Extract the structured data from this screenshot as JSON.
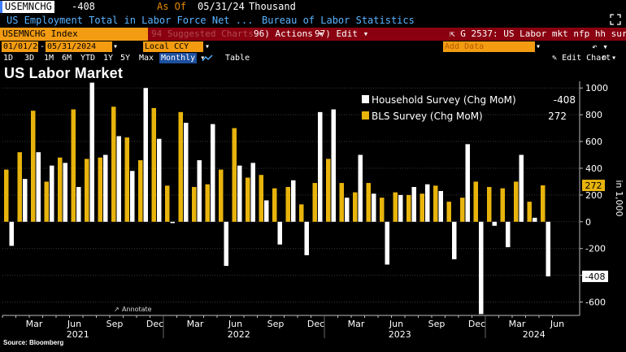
{
  "header": {
    "ticker": "USEMNCHG",
    "last_value": "-408",
    "as_of_label": "As Of",
    "as_of_date": "05/31/24",
    "unit": "Thousand",
    "description": "US Employment Total in Labor Force Net ...",
    "source": "Bureau of Labor Statistics"
  },
  "toolbar": {
    "index_label": "USEMNCHG Index",
    "suggested_label": "94 Suggested Charts",
    "actions_label": "96) Actions",
    "edit_label": "97) Edit",
    "chart_title_code": "G 2537: US Labor mkt nfp hh surv",
    "start_date": "01/01/2021",
    "date_sep": "-",
    "end_date": "05/31/2024",
    "currency": "Local CCY",
    "add_data_label": "Add Data",
    "edit_chart_label": "Edit Chart",
    "periods": [
      "1D",
      "3D",
      "1M",
      "6M",
      "YTD",
      "1Y",
      "5Y",
      "Max"
    ],
    "frequency": "Monthly",
    "table_label": "Table"
  },
  "page_title": "US Labor Market",
  "annotate_label": "Annotate",
  "footer": "Source: Bloomberg",
  "colors": {
    "household": "#ffffff",
    "bls": "#e8b40c",
    "background": "#000000",
    "accent_orange": "#f39c12",
    "link_blue": "#5ab4ff",
    "bar_red": "#8a0010"
  },
  "chart_data": {
    "type": "bar",
    "title": "US Labor Market",
    "ylabel": "in 1,000",
    "ylim": [
      -700,
      1050
    ],
    "yticks": [
      -600,
      -400,
      -200,
      0,
      200,
      400,
      600,
      800,
      1000
    ],
    "months": [
      "Jan 2021",
      "Feb 2021",
      "Mar 2021",
      "Apr 2021",
      "May 2021",
      "Jun 2021",
      "Jul 2021",
      "Aug 2021",
      "Sep 2021",
      "Oct 2021",
      "Nov 2021",
      "Dec 2021",
      "Jan 2022",
      "Feb 2022",
      "Mar 2022",
      "Apr 2022",
      "May 2022",
      "Jun 2022",
      "Jul 2022",
      "Aug 2022",
      "Sep 2022",
      "Oct 2022",
      "Nov 2022",
      "Dec 2022",
      "Jan 2023",
      "Feb 2023",
      "Mar 2023",
      "Apr 2023",
      "May 2023",
      "Jun 2023",
      "Jul 2023",
      "Aug 2023",
      "Sep 2023",
      "Oct 2023",
      "Nov 2023",
      "Dec 2023",
      "Jan 2024",
      "Feb 2024",
      "Mar 2024",
      "Apr 2024",
      "May 2024"
    ],
    "x_month_labels": [
      "Mar",
      "Jun",
      "Sep",
      "Dec",
      "Mar",
      "Jun",
      "Sep",
      "Dec",
      "Mar",
      "Jun",
      "Sep",
      "Dec",
      "Mar",
      "Jun"
    ],
    "x_month_label_indices": [
      2,
      5,
      8,
      11,
      14,
      17,
      20,
      23,
      26,
      29,
      32,
      35,
      38,
      41
    ],
    "x_year_labels": [
      "2021",
      "2022",
      "2023",
      "2024"
    ],
    "x_year_label_positions": [
      5.5,
      17.5,
      29.5,
      39.5
    ],
    "series": [
      {
        "name": "Household Survey (Chg MoM)",
        "last": "-408",
        "values": [
          -180,
          320,
          520,
          420,
          440,
          260,
          1040,
          500,
          640,
          380,
          1000,
          620,
          -10,
          740,
          460,
          730,
          -330,
          420,
          440,
          160,
          -170,
          310,
          -250,
          820,
          840,
          180,
          500,
          210,
          -320,
          200,
          260,
          280,
          230,
          -280,
          580,
          -690,
          -30,
          -190,
          500,
          30,
          -408
        ]
      },
      {
        "name": "BLS Survey (Chg MoM)",
        "last": "272",
        "values": [
          390,
          520,
          830,
          300,
          480,
          840,
          470,
          480,
          860,
          630,
          460,
          850,
          270,
          820,
          260,
          280,
          390,
          700,
          330,
          350,
          250,
          260,
          130,
          290,
          470,
          290,
          220,
          290,
          180,
          220,
          200,
          210,
          270,
          150,
          180,
          300,
          260,
          250,
          300,
          150,
          272
        ]
      }
    ],
    "value_labels": {
      "bls_last": "272",
      "household_last": "-408"
    }
  }
}
